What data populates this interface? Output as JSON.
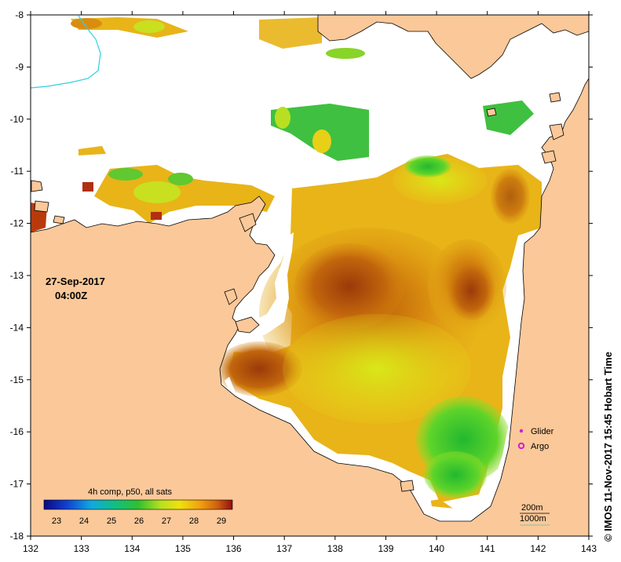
{
  "map": {
    "datetime": {
      "date": "27-Sep-2017",
      "time": "04:00Z"
    },
    "credit": "© IMOS 11-Nov-2017 15:45 Hobart Time",
    "legend": {
      "glider": "Glider",
      "argo": "Argo",
      "glider_color": "#d020d0",
      "argo_color": "#d020d0"
    },
    "isobaths": {
      "depth1": "200m",
      "depth2": "1000m"
    },
    "colorbar": {
      "title": "4h comp, p50, all sats",
      "ticks": [
        "23",
        "24",
        "25",
        "26",
        "27",
        "28",
        "29"
      ]
    },
    "x_ticks": [
      "132",
      "133",
      "134",
      "135",
      "136",
      "137",
      "138",
      "139",
      "140",
      "141",
      "142",
      "143"
    ],
    "y_ticks": [
      "-8",
      "-9",
      "-10",
      "-11",
      "-12",
      "-13",
      "-14",
      "-15",
      "-16",
      "-17",
      "-18"
    ],
    "colors": {
      "land": "#fbc899",
      "ocean_nodata": "#ffffff",
      "river": "#30d0e0"
    }
  }
}
